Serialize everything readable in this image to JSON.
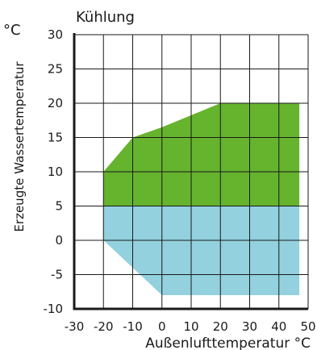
{
  "chart_data": {
    "type": "area",
    "title": "Kühlung",
    "ylabel": "Erzeugte Wassertemperatur",
    "yunit": "°C",
    "xlabel": "Außenlufttemperatur °C",
    "xlim": [
      -30,
      50
    ],
    "ylim": [
      -10,
      30
    ],
    "xticks": [
      -30,
      -20,
      -10,
      0,
      10,
      20,
      30,
      40,
      50
    ],
    "yticks": [
      -10,
      -5,
      0,
      5,
      10,
      15,
      20,
      25,
      30
    ],
    "grid": true,
    "regions": [
      {
        "color": "#66b32e",
        "points": [
          [
            -20,
            5
          ],
          [
            -20,
            10
          ],
          [
            -10,
            15
          ],
          [
            0,
            16.5
          ],
          [
            20,
            20
          ],
          [
            47,
            20
          ],
          [
            47,
            5
          ]
        ]
      },
      {
        "color": "#93d1de",
        "points": [
          [
            -20,
            5
          ],
          [
            -20,
            0
          ],
          [
            0,
            -8
          ],
          [
            47,
            -8
          ],
          [
            47,
            5
          ]
        ]
      }
    ]
  }
}
